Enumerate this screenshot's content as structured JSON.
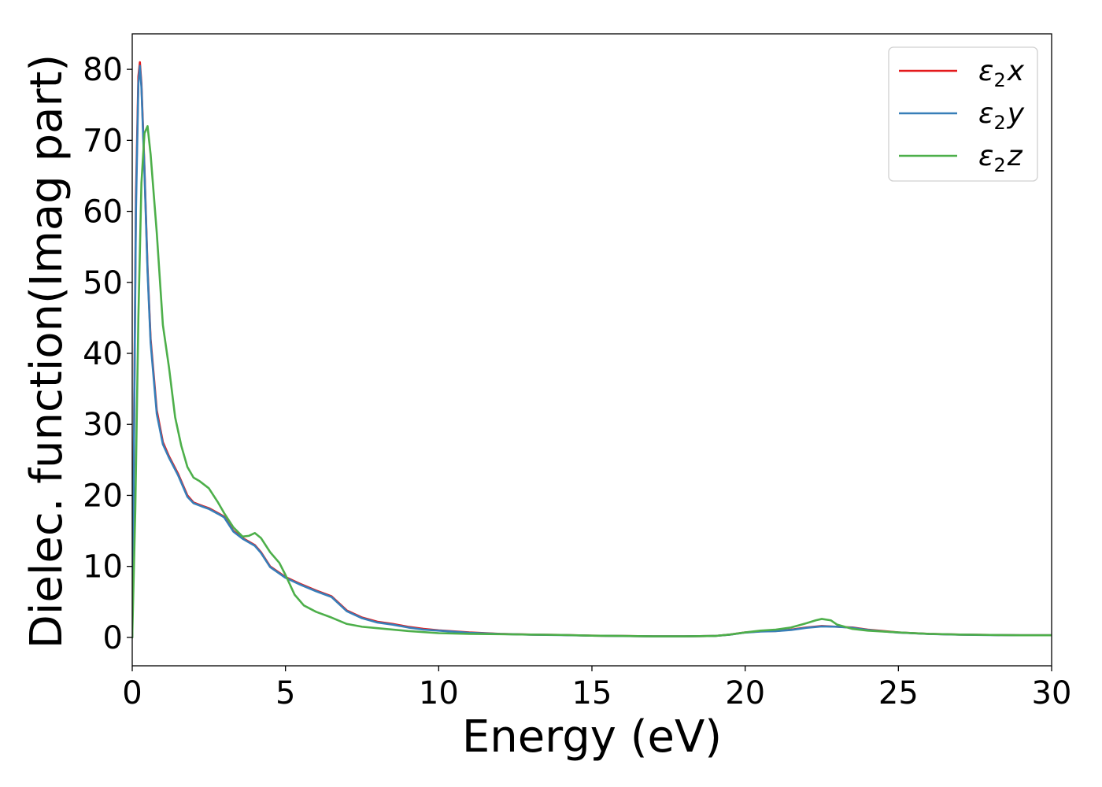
{
  "chart_data": {
    "type": "line",
    "xlabel": "Energy (eV)",
    "ylabel": "Dielec. function(Imag part)",
    "xlim": [
      0,
      30
    ],
    "ylim": [
      -4,
      85
    ],
    "xticks": [
      0,
      5,
      10,
      15,
      20,
      25,
      30
    ],
    "yticks": [
      0,
      10,
      20,
      30,
      40,
      50,
      60,
      70,
      80
    ],
    "grid": false,
    "legend_position": "top-right",
    "series": [
      {
        "name": "ε2x",
        "legend": {
          "base": "ε",
          "sub": "2",
          "suffix": "x"
        },
        "color": "#e41a1c",
        "x": [
          0,
          0.05,
          0.12,
          0.2,
          0.25,
          0.3,
          0.4,
          0.5,
          0.6,
          0.8,
          1.0,
          1.2,
          1.5,
          1.8,
          2.0,
          2.3,
          2.5,
          2.8,
          3.0,
          3.3,
          3.6,
          4.0,
          4.2,
          4.5,
          5.0,
          5.5,
          6.0,
          6.5,
          7.0,
          7.5,
          8.0,
          8.5,
          9.0,
          9.5,
          10.0,
          11.0,
          12.0,
          13.0,
          14.0,
          15.0,
          16.0,
          17.0,
          18.0,
          19.0,
          19.5,
          20.0,
          20.5,
          21.0,
          21.5,
          22.0,
          22.5,
          23.0,
          23.5,
          24.0,
          24.5,
          25.0,
          26.0,
          27.0,
          28.0,
          29.0,
          30.0
        ],
        "y": [
          0,
          25,
          62,
          79,
          81,
          78,
          66,
          52,
          42,
          32,
          27.5,
          25.5,
          23,
          20,
          19,
          18.5,
          18.2,
          17.5,
          17,
          15,
          14,
          13,
          12,
          10,
          8.5,
          7.5,
          6.6,
          5.8,
          3.8,
          2.8,
          2.2,
          1.9,
          1.5,
          1.2,
          1.0,
          0.7,
          0.5,
          0.4,
          0.35,
          0.25,
          0.2,
          0.15,
          0.15,
          0.2,
          0.4,
          0.7,
          0.85,
          0.9,
          1.1,
          1.4,
          1.6,
          1.5,
          1.4,
          1.1,
          0.9,
          0.7,
          0.5,
          0.4,
          0.35,
          0.3,
          0.3
        ]
      },
      {
        "name": "ε2y",
        "legend": {
          "base": "ε",
          "sub": "2",
          "suffix": "y"
        },
        "color": "#377eb8",
        "x": [
          0,
          0.05,
          0.12,
          0.2,
          0.25,
          0.3,
          0.4,
          0.5,
          0.6,
          0.8,
          1.0,
          1.2,
          1.5,
          1.8,
          2.0,
          2.3,
          2.5,
          2.8,
          3.0,
          3.3,
          3.6,
          4.0,
          4.2,
          4.5,
          5.0,
          5.5,
          6.0,
          6.5,
          7.0,
          7.5,
          8.0,
          8.5,
          9.0,
          9.5,
          10.0,
          11.0,
          12.0,
          13.0,
          14.0,
          15.0,
          16.0,
          17.0,
          18.0,
          19.0,
          19.5,
          20.0,
          20.5,
          21.0,
          21.5,
          22.0,
          22.5,
          23.0,
          23.5,
          24.0,
          24.5,
          25.0,
          26.0,
          27.0,
          28.0,
          29.0,
          30.0
        ],
        "y": [
          0,
          24,
          60,
          78,
          80.5,
          77.5,
          65.5,
          51.5,
          41.5,
          31.5,
          27.2,
          25.3,
          22.8,
          19.8,
          18.9,
          18.4,
          18.1,
          17.4,
          16.9,
          14.9,
          13.9,
          12.9,
          11.9,
          9.9,
          8.4,
          7.4,
          6.5,
          5.7,
          3.7,
          2.7,
          2.1,
          1.8,
          1.4,
          1.1,
          0.95,
          0.65,
          0.48,
          0.38,
          0.33,
          0.24,
          0.19,
          0.15,
          0.15,
          0.2,
          0.38,
          0.68,
          0.83,
          0.88,
          1.05,
          1.35,
          1.55,
          1.5,
          1.35,
          1.05,
          0.85,
          0.68,
          0.48,
          0.38,
          0.33,
          0.3,
          0.3
        ]
      },
      {
        "name": "ε2z",
        "legend": {
          "base": "ε",
          "sub": "2",
          "suffix": "z"
        },
        "color": "#4daf4a",
        "x": [
          0,
          0.1,
          0.2,
          0.3,
          0.4,
          0.5,
          0.6,
          0.8,
          1.0,
          1.2,
          1.4,
          1.6,
          1.8,
          2.0,
          2.2,
          2.5,
          2.8,
          3.0,
          3.3,
          3.6,
          3.8,
          4.0,
          4.2,
          4.5,
          4.8,
          5.0,
          5.3,
          5.6,
          6.0,
          6.5,
          7.0,
          7.5,
          8.0,
          9.0,
          10.0,
          11.0,
          12.0,
          13.0,
          14.0,
          15.0,
          16.0,
          17.0,
          18.0,
          19.0,
          19.5,
          20.0,
          20.5,
          21.0,
          21.5,
          22.0,
          22.3,
          22.5,
          22.8,
          23.0,
          23.5,
          24.0,
          25.0,
          26.0,
          27.0,
          28.0,
          29.0,
          30.0
        ],
        "y": [
          0,
          18,
          45,
          64,
          71,
          72,
          68,
          57,
          44,
          38,
          31,
          27,
          24,
          22.5,
          22,
          21,
          19,
          17.5,
          15.5,
          14.2,
          14.3,
          14.7,
          14,
          12,
          10.5,
          8.8,
          6,
          4.5,
          3.6,
          2.8,
          1.9,
          1.5,
          1.3,
          0.9,
          0.6,
          0.5,
          0.45,
          0.4,
          0.35,
          0.25,
          0.2,
          0.15,
          0.15,
          0.2,
          0.4,
          0.7,
          0.95,
          1.1,
          1.4,
          2.0,
          2.4,
          2.6,
          2.4,
          1.8,
          1.2,
          0.95,
          0.7,
          0.5,
          0.4,
          0.35,
          0.3,
          0.3
        ]
      }
    ]
  }
}
